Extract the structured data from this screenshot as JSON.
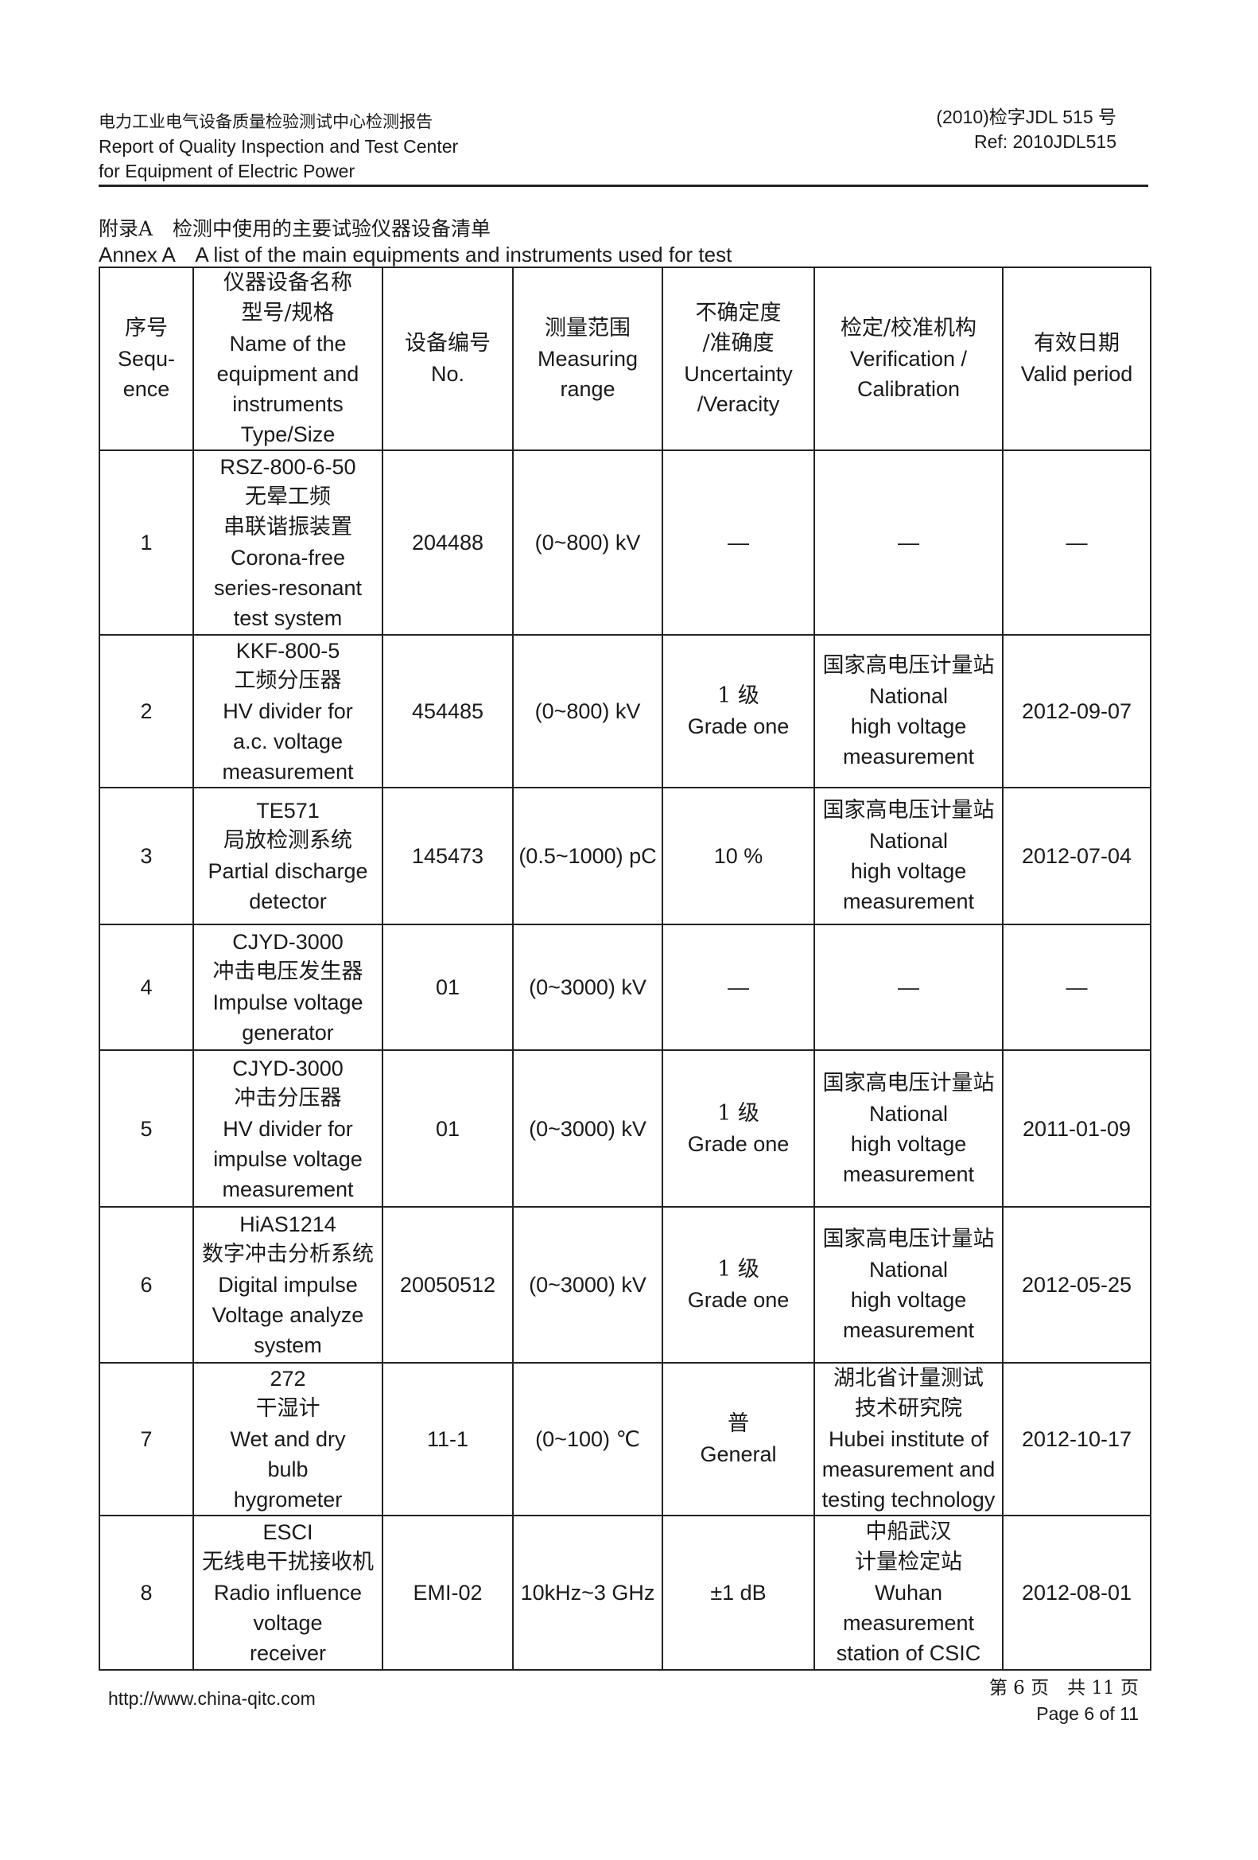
{
  "header": {
    "org_cn": "电力工业电气设备质量检验测试中心检测报告",
    "org_en_1": "Report of Quality Inspection and Test Center",
    "org_en_2": "for Equipment of Electric Power",
    "ref_cn": "(2010)检字JDL 515 号",
    "ref_en": "Ref: 2010JDL515"
  },
  "annex": {
    "title_cn": "附录A　检测中使用的主要试验仪器设备清单",
    "title_en": "Annex A　A list of the main equipments and instruments used for test"
  },
  "table": {
    "columns": [
      [
        "序号",
        "Sequ-",
        "ence"
      ],
      [
        "仪器设备名称",
        "型号/规格",
        "Name of the",
        "equipment and",
        "instruments",
        "Type/Size"
      ],
      [
        "设备编号",
        "No."
      ],
      [
        "测量范围",
        "Measuring",
        "range"
      ],
      [
        "不确定度",
        "/准确度",
        "Uncertainty",
        "/Veracity"
      ],
      [
        "检定/校准机构",
        "Verification /",
        "Calibration"
      ],
      [
        "有效日期",
        "Valid period"
      ]
    ],
    "rows": [
      {
        "seq": "1",
        "name": [
          "RSZ-800-6-50",
          "无晕工频",
          "串联谐振装置",
          "Corona-free",
          "series-resonant",
          "test system"
        ],
        "no": "204488",
        "range": "(0~800) kV",
        "unc": [
          "—"
        ],
        "cal": [
          "—"
        ],
        "valid": "—"
      },
      {
        "seq": "2",
        "name": [
          "KKF-800-5",
          "工频分压器",
          "HV divider for",
          "a.c. voltage",
          "measurement"
        ],
        "no": "454485",
        "range": "(0~800) kV",
        "unc": [
          "1 级",
          "Grade one"
        ],
        "cal": [
          "国家高电压计量站",
          "National",
          "high voltage",
          "measurement"
        ],
        "valid": "2012-09-07"
      },
      {
        "seq": "3",
        "name": [
          "TE571",
          "局放检测系统",
          "Partial discharge",
          "detector"
        ],
        "no": "145473",
        "range": "(0.5~1000) pC",
        "unc": [
          "10 %"
        ],
        "cal": [
          "国家高电压计量站",
          "National",
          "high voltage",
          "measurement"
        ],
        "valid": "2012-07-04"
      },
      {
        "seq": "4",
        "name": [
          "CJYD-3000",
          "冲击电压发生器",
          "Impulse voltage",
          "generator"
        ],
        "no": "01",
        "range": "(0~3000) kV",
        "unc": [
          "—"
        ],
        "cal": [
          "—"
        ],
        "valid": "—"
      },
      {
        "seq": "5",
        "name": [
          "CJYD-3000",
          "冲击分压器",
          "HV divider for",
          "impulse voltage",
          "measurement"
        ],
        "no": "01",
        "range": "(0~3000) kV",
        "unc": [
          "1 级",
          "Grade one"
        ],
        "cal": [
          "国家高电压计量站",
          "National",
          "high voltage",
          "measurement"
        ],
        "valid": "2011-01-09"
      },
      {
        "seq": "6",
        "name": [
          "HiAS1214",
          "数字冲击分析系统",
          "Digital impulse",
          "Voltage analyze",
          "system"
        ],
        "no": "20050512",
        "range": "(0~3000) kV",
        "unc": [
          "1 级",
          "Grade one"
        ],
        "cal": [
          "国家高电压计量站",
          "National",
          "high voltage",
          "measurement"
        ],
        "valid": "2012-05-25"
      },
      {
        "seq": "7",
        "name": [
          "272",
          "干湿计",
          "Wet and dry",
          "bulb",
          "hygrometer"
        ],
        "no": "11-1",
        "range": "(0~100) ℃",
        "unc": [
          "普",
          "General"
        ],
        "cal": [
          "湖北省计量测试",
          "技术研究院",
          "Hubei institute of",
          "measurement and",
          "testing technology"
        ],
        "valid": "2012-10-17"
      },
      {
        "seq": "8",
        "name": [
          "ESCI",
          "无线电干扰接收机",
          "Radio influence",
          "voltage",
          "receiver"
        ],
        "no": "EMI-02",
        "range": "10kHz~3 GHz",
        "unc": [
          "±1 dB"
        ],
        "cal": [
          "中船武汉",
          "计量检定站",
          "Wuhan",
          "measurement",
          "station of CSIC"
        ],
        "valid": "2012-08-01"
      }
    ]
  },
  "footer": {
    "url": "http://www.china-qitc.com",
    "page_cn": "第 6 页　共 11 页",
    "page_en": "Page 6 of 11"
  }
}
